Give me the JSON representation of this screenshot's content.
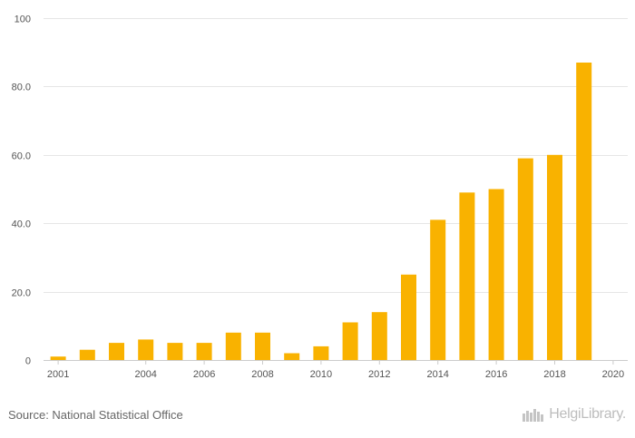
{
  "chart_data": {
    "type": "bar",
    "title": "",
    "xlabel": "",
    "ylabel": "",
    "ylim": [
      0,
      100
    ],
    "yticks": [
      {
        "value": 0,
        "label": "0"
      },
      {
        "value": 20,
        "label": "20.0"
      },
      {
        "value": 40,
        "label": "40.0"
      },
      {
        "value": 60,
        "label": "60.0"
      },
      {
        "value": 80,
        "label": "80.0"
      },
      {
        "value": 100,
        "label": "100"
      }
    ],
    "categories": [
      "2001",
      "2002",
      "2003",
      "2004",
      "2005",
      "2006",
      "2007",
      "2008",
      "2009",
      "2010",
      "2011",
      "2012",
      "2013",
      "2014",
      "2015",
      "2016",
      "2017",
      "2018",
      "2019",
      "2020"
    ],
    "xtick_labels": [
      "2001",
      "2004",
      "2006",
      "2008",
      "2010",
      "2012",
      "2014",
      "2016",
      "2018",
      "2020"
    ],
    "values": [
      1,
      3,
      5,
      6,
      5,
      5,
      8,
      8,
      2,
      4,
      11,
      14,
      25,
      41,
      49,
      50,
      59,
      60,
      87,
      0
    ],
    "bar_color": "#F9B200"
  },
  "footer": {
    "source": "Source: National Statistical Office",
    "brand": "HelgiLibrary."
  }
}
